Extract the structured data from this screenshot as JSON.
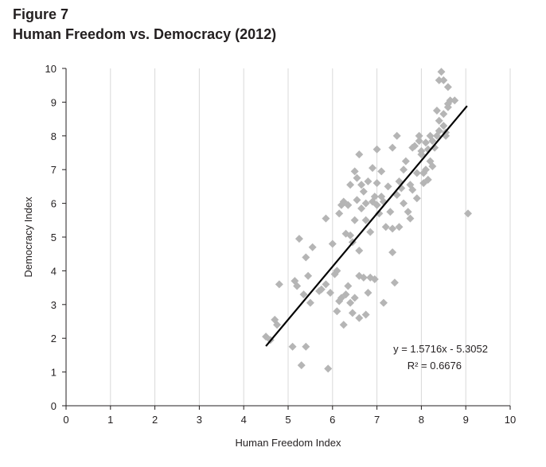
{
  "figure": {
    "label": "Figure 7",
    "title": "Human Freedom vs. Democracy (2012)"
  },
  "chart_data": {
    "type": "scatter",
    "xlabel": "Human Freedom Index",
    "ylabel": "Democracy Index",
    "xlim": [
      0,
      10
    ],
    "ylim": [
      0,
      10
    ],
    "x_ticks": [
      0,
      1,
      2,
      3,
      4,
      5,
      6,
      7,
      8,
      9,
      10
    ],
    "y_ticks": [
      0,
      1,
      2,
      3,
      4,
      5,
      6,
      7,
      8,
      9,
      10
    ],
    "grid": "vertical",
    "marker": "diamond",
    "marker_color": "#b5b5b5",
    "trend_color": "#000000",
    "trendline": {
      "slope": 1.5716,
      "intercept": -5.3052,
      "x_range": [
        4.5,
        9.03
      ]
    },
    "equation": "y = 1.5716x - 5.3052",
    "r_squared": "R² = 0.6676",
    "points": [
      [
        4.5,
        2.05
      ],
      [
        4.6,
        1.95
      ],
      [
        4.7,
        2.55
      ],
      [
        4.75,
        2.4
      ],
      [
        4.8,
        3.6
      ],
      [
        5.1,
        1.75
      ],
      [
        5.15,
        3.7
      ],
      [
        5.2,
        3.55
      ],
      [
        5.25,
        4.95
      ],
      [
        5.3,
        1.2
      ],
      [
        5.35,
        3.3
      ],
      [
        5.4,
        1.75
      ],
      [
        5.4,
        4.4
      ],
      [
        5.45,
        3.85
      ],
      [
        5.5,
        3.05
      ],
      [
        5.55,
        4.7
      ],
      [
        5.7,
        3.4
      ],
      [
        5.75,
        3.45
      ],
      [
        5.85,
        5.55
      ],
      [
        5.85,
        3.6
      ],
      [
        5.9,
        1.1
      ],
      [
        5.95,
        3.35
      ],
      [
        6.0,
        4.8
      ],
      [
        6.05,
        3.9
      ],
      [
        6.1,
        4.0
      ],
      [
        6.1,
        2.8
      ],
      [
        6.15,
        3.1
      ],
      [
        6.15,
        5.7
      ],
      [
        6.2,
        3.2
      ],
      [
        6.2,
        5.95
      ],
      [
        6.25,
        2.4
      ],
      [
        6.25,
        6.05
      ],
      [
        6.3,
        5.1
      ],
      [
        6.3,
        3.3
      ],
      [
        6.35,
        3.55
      ],
      [
        6.35,
        5.95
      ],
      [
        6.4,
        3.05
      ],
      [
        6.4,
        5.05
      ],
      [
        6.4,
        6.55
      ],
      [
        6.45,
        2.75
      ],
      [
        6.45,
        4.85
      ],
      [
        6.5,
        6.95
      ],
      [
        6.5,
        5.5
      ],
      [
        6.5,
        3.2
      ],
      [
        6.55,
        6.75
      ],
      [
        6.55,
        6.1
      ],
      [
        6.6,
        3.85
      ],
      [
        6.6,
        2.6
      ],
      [
        6.6,
        4.6
      ],
      [
        6.6,
        7.45
      ],
      [
        6.65,
        6.55
      ],
      [
        6.65,
        5.85
      ],
      [
        6.7,
        3.8
      ],
      [
        6.7,
        6.35
      ],
      [
        6.75,
        2.7
      ],
      [
        6.75,
        5.5
      ],
      [
        6.75,
        6.0
      ],
      [
        6.8,
        3.35
      ],
      [
        6.8,
        6.65
      ],
      [
        6.85,
        5.15
      ],
      [
        6.85,
        3.8
      ],
      [
        6.9,
        7.05
      ],
      [
        6.9,
        6.05
      ],
      [
        6.95,
        3.75
      ],
      [
        6.95,
        6.2
      ],
      [
        7.0,
        7.6
      ],
      [
        7.0,
        5.95
      ],
      [
        7.0,
        6.6
      ],
      [
        7.05,
        5.7
      ],
      [
        7.1,
        6.95
      ],
      [
        7.1,
        6.2
      ],
      [
        7.15,
        3.05
      ],
      [
        7.15,
        6.05
      ],
      [
        7.2,
        5.3
      ],
      [
        7.25,
        6.5
      ],
      [
        7.3,
        5.75
      ],
      [
        7.35,
        4.55
      ],
      [
        7.35,
        7.65
      ],
      [
        7.35,
        5.25
      ],
      [
        7.4,
        3.65
      ],
      [
        7.45,
        8.0
      ],
      [
        7.45,
        6.25
      ],
      [
        7.5,
        6.65
      ],
      [
        7.5,
        5.3
      ],
      [
        7.55,
        6.45
      ],
      [
        7.6,
        7.0
      ],
      [
        7.6,
        6.0
      ],
      [
        7.65,
        7.25
      ],
      [
        7.7,
        5.75
      ],
      [
        7.75,
        6.55
      ],
      [
        7.75,
        5.55
      ],
      [
        7.8,
        6.4
      ],
      [
        7.8,
        7.65
      ],
      [
        7.85,
        7.7
      ],
      [
        7.9,
        6.9
      ],
      [
        7.9,
        6.15
      ],
      [
        7.95,
        8.0
      ],
      [
        7.95,
        7.85
      ],
      [
        8.0,
        7.55
      ],
      [
        8.0,
        7.45
      ],
      [
        8.05,
        6.6
      ],
      [
        8.05,
        6.9
      ],
      [
        8.1,
        7.8
      ],
      [
        8.1,
        7.0
      ],
      [
        8.15,
        6.7
      ],
      [
        8.15,
        7.6
      ],
      [
        8.2,
        8.0
      ],
      [
        8.2,
        7.25
      ],
      [
        8.25,
        7.1
      ],
      [
        8.25,
        7.85
      ],
      [
        8.3,
        7.65
      ],
      [
        8.35,
        8.75
      ],
      [
        8.35,
        8.0
      ],
      [
        8.4,
        9.65
      ],
      [
        8.4,
        8.45
      ],
      [
        8.4,
        8.15
      ],
      [
        8.45,
        9.9
      ],
      [
        8.5,
        8.65
      ],
      [
        8.5,
        8.3
      ],
      [
        8.5,
        9.65
      ],
      [
        8.55,
        8.0
      ],
      [
        8.55,
        8.1
      ],
      [
        8.6,
        8.95
      ],
      [
        8.6,
        8.85
      ],
      [
        8.6,
        9.45
      ],
      [
        8.65,
        9.05
      ],
      [
        8.75,
        9.05
      ],
      [
        9.05,
        5.7
      ]
    ]
  }
}
